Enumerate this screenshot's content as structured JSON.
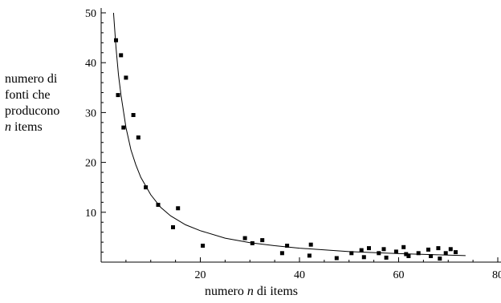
{
  "chart_data": {
    "type": "scatter",
    "xlabel": {
      "pre": "numero ",
      "var": "n",
      "post": " di items"
    },
    "ylabel": [
      {
        "pre": "numero di",
        "var": "",
        "post": ""
      },
      {
        "pre": "fonti che",
        "var": "",
        "post": ""
      },
      {
        "pre": "producono",
        "var": "",
        "post": ""
      },
      {
        "pre": "",
        "var": "n",
        "post": " items"
      }
    ],
    "xlim": [
      0,
      80
    ],
    "ylim": [
      0,
      50
    ],
    "x_ticks": [
      20,
      40,
      60,
      80
    ],
    "x_tick_labels": [
      "20",
      "40",
      "60",
      "80"
    ],
    "y_ticks": [
      10,
      20,
      30,
      40,
      50
    ],
    "y_tick_labels": [
      "10",
      "20",
      "30",
      "40",
      "50"
    ],
    "grid": false,
    "series": [
      {
        "kind": "points",
        "x": [
          3,
          3.4,
          4,
          4.5,
          5,
          6.5,
          7.5,
          9,
          11.5,
          14.5,
          15.5,
          20.5,
          29,
          30.5,
          32.5,
          36.5,
          37.5,
          42,
          42.3,
          47.5,
          50.5,
          52.5,
          53,
          54,
          56,
          57,
          57.5,
          59.5,
          61,
          61.5,
          62,
          64,
          66,
          66.5,
          68,
          68.3,
          69.5,
          70.5,
          71.5
        ],
        "y": [
          44.5,
          33.5,
          41.5,
          27,
          37,
          29.5,
          25,
          15,
          11.5,
          7,
          10.8,
          3.3,
          4.8,
          3.8,
          4.4,
          1.8,
          3.3,
          1.3,
          3.5,
          0.8,
          1.8,
          2.4,
          1,
          2.8,
          1.8,
          2.6,
          0.9,
          2.1,
          3,
          1.6,
          1.2,
          1.8,
          2.5,
          1.2,
          2.8,
          0.7,
          1.8,
          2.6,
          2
        ]
      },
      {
        "kind": "fit-curve",
        "x": [
          2.5,
          3,
          3.5,
          4,
          5,
          6,
          7,
          8,
          10,
          12,
          14,
          17,
          20,
          25,
          30,
          35,
          40,
          50,
          60,
          70,
          73.5
        ],
        "y": [
          50,
          43,
          37.5,
          33.5,
          27,
          22.5,
          19.5,
          17,
          13.5,
          11,
          9.3,
          7.5,
          6.3,
          4.8,
          3.9,
          3.3,
          2.8,
          2.1,
          1.7,
          1.4,
          1.3
        ]
      }
    ]
  }
}
